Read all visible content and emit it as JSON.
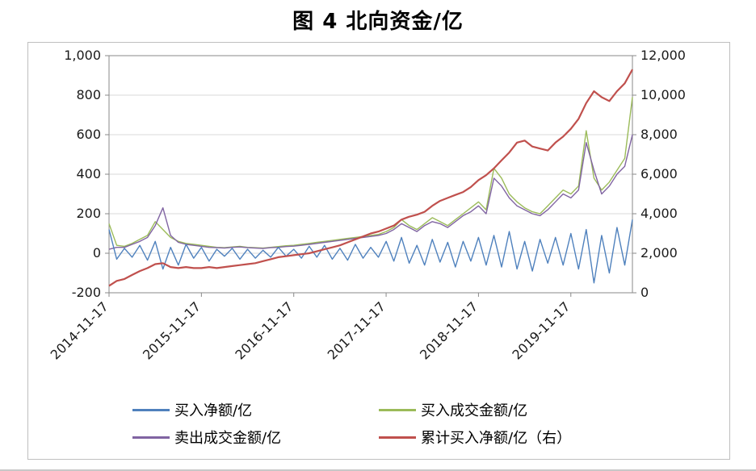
{
  "title": "图 4 北向资金/亿",
  "chart_data": {
    "type": "line",
    "title": "图 4 北向资金/亿",
    "sampling": "monthly samples, Nov 2014 to Jul 2020, index 0-68",
    "grid": "horizontal",
    "legend_position": "bottom",
    "left_axis": {
      "min": -200,
      "max": 1000,
      "step": 200,
      "tick_labels": [
        "-200",
        "0",
        "200",
        "400",
        "600",
        "800",
        "1,000"
      ]
    },
    "right_axis": {
      "min": 0,
      "max": 12000,
      "step": 2000,
      "tick_labels": [
        "0",
        "2,000",
        "4,000",
        "6,000",
        "8,000",
        "10,000",
        "12,000"
      ]
    },
    "x_axis": {
      "tick_labels": [
        "2014-11-17",
        "2015-11-17",
        "2016-11-17",
        "2017-11-17",
        "2018-11-17",
        "2019-11-17"
      ],
      "tick_positions_months": [
        0,
        12,
        24,
        36,
        48,
        60
      ],
      "label_rotation_deg": -45
    },
    "series": [
      {
        "name": "买入净额/亿",
        "axis": "left",
        "color": "#4F81BD",
        "values": [
          120,
          -30,
          25,
          -20,
          40,
          -35,
          60,
          -80,
          30,
          -60,
          45,
          -25,
          30,
          -40,
          20,
          -15,
          25,
          -30,
          20,
          -25,
          15,
          -20,
          30,
          -15,
          20,
          -25,
          35,
          -20,
          40,
          -30,
          25,
          -35,
          45,
          -25,
          30,
          -20,
          60,
          -40,
          80,
          -50,
          40,
          -60,
          70,
          -45,
          55,
          -70,
          60,
          -40,
          80,
          -60,
          90,
          -70,
          110,
          -80,
          60,
          -90,
          70,
          -50,
          80,
          -60,
          100,
          -80,
          120,
          -150,
          90,
          -100,
          130,
          -60,
          170
        ]
      },
      {
        "name": "买入成交金额/亿",
        "axis": "left",
        "color": "#9BBB59",
        "values": [
          150,
          40,
          35,
          50,
          70,
          90,
          160,
          120,
          80,
          60,
          50,
          45,
          40,
          35,
          30,
          28,
          32,
          35,
          30,
          28,
          26,
          30,
          34,
          38,
          40,
          45,
          50,
          55,
          60,
          65,
          70,
          75,
          80,
          85,
          90,
          95,
          110,
          130,
          170,
          140,
          120,
          150,
          180,
          160,
          140,
          170,
          200,
          230,
          260,
          220,
          430,
          380,
          300,
          260,
          230,
          210,
          200,
          240,
          280,
          320,
          300,
          340,
          620,
          380,
          320,
          360,
          420,
          480,
          790
        ]
      },
      {
        "name": "卖出成交金额/亿",
        "axis": "left",
        "color": "#8064A2",
        "values": [
          20,
          30,
          30,
          45,
          60,
          80,
          140,
          230,
          90,
          55,
          45,
          40,
          35,
          30,
          28,
          26,
          30,
          32,
          28,
          26,
          24,
          28,
          30,
          34,
          36,
          40,
          45,
          50,
          55,
          60,
          65,
          70,
          75,
          80,
          85,
          90,
          100,
          120,
          150,
          130,
          110,
          140,
          160,
          150,
          130,
          160,
          190,
          210,
          240,
          200,
          380,
          340,
          280,
          240,
          220,
          200,
          190,
          220,
          260,
          300,
          280,
          320,
          560,
          420,
          300,
          340,
          400,
          440,
          600
        ]
      },
      {
        "name": "累计买入净额/亿（右）",
        "axis": "right",
        "color": "#C0504D",
        "values": [
          350,
          600,
          700,
          900,
          1100,
          1250,
          1450,
          1500,
          1300,
          1250,
          1300,
          1250,
          1250,
          1300,
          1250,
          1300,
          1350,
          1400,
          1450,
          1500,
          1600,
          1700,
          1800,
          1850,
          1900,
          1950,
          2000,
          2100,
          2200,
          2300,
          2400,
          2550,
          2700,
          2850,
          3000,
          3100,
          3250,
          3400,
          3700,
          3850,
          3950,
          4100,
          4400,
          4650,
          4800,
          4950,
          5100,
          5350,
          5700,
          5950,
          6300,
          6700,
          7100,
          7600,
          7700,
          7400,
          7300,
          7200,
          7600,
          7900,
          8300,
          8800,
          9600,
          10200,
          9900,
          9700,
          10200,
          10600,
          11300
        ]
      }
    ]
  },
  "style": {
    "gridline_color": "#d9d9d9",
    "plot_border_color": "#898989",
    "axis_text_color": "#1a1a1a",
    "chart_box_border_color": "#bfbfbf"
  }
}
